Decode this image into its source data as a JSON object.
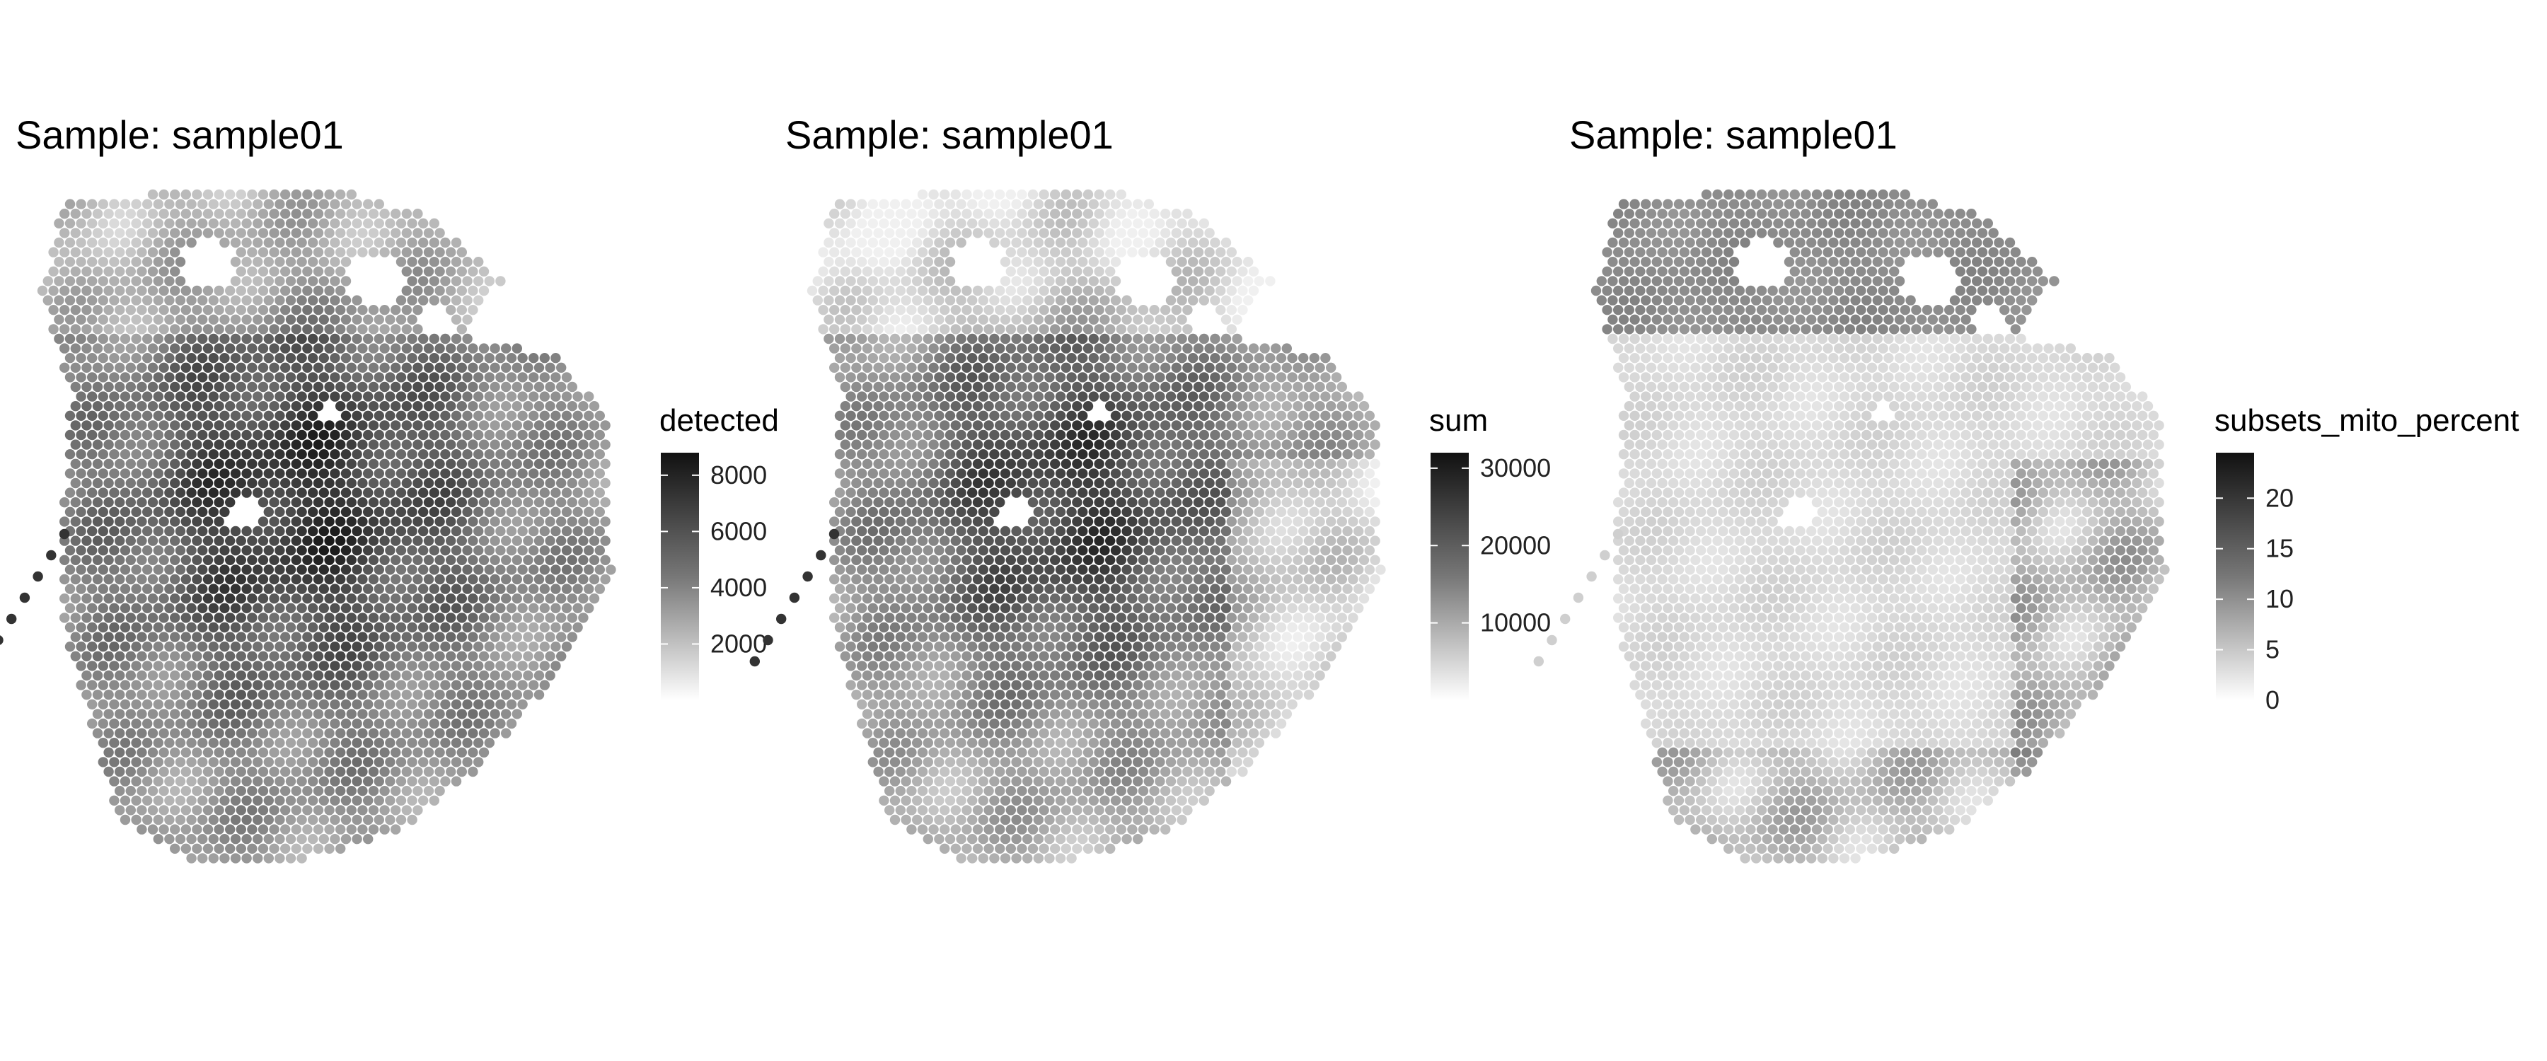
{
  "chart_data": [
    {
      "type": "scatter",
      "title": "Sample: sample01",
      "legend": {
        "title": "detected",
        "ticks": [
          2000,
          4000,
          6000,
          8000
        ],
        "range": [
          0,
          8800
        ],
        "placement": "right"
      },
      "colors": {
        "low": "#ffffff",
        "high": "#111111"
      },
      "field": "detected"
    },
    {
      "type": "scatter",
      "title": "Sample: sample01",
      "legend": {
        "title": "sum",
        "ticks": [
          10000,
          20000,
          30000
        ],
        "range": [
          0,
          32000
        ],
        "placement": "right"
      },
      "colors": {
        "low": "#ffffff",
        "high": "#111111"
      },
      "field": "sum"
    },
    {
      "type": "scatter",
      "title": "Sample: sample01",
      "legend": {
        "title": "subsets_mito_percent",
        "ticks": [
          0,
          5,
          10,
          15,
          20
        ],
        "range": [
          0,
          24.5
        ],
        "placement": "right"
      },
      "colors": {
        "low": "#ffffff",
        "high": "#111111"
      },
      "field": "mito"
    }
  ]
}
